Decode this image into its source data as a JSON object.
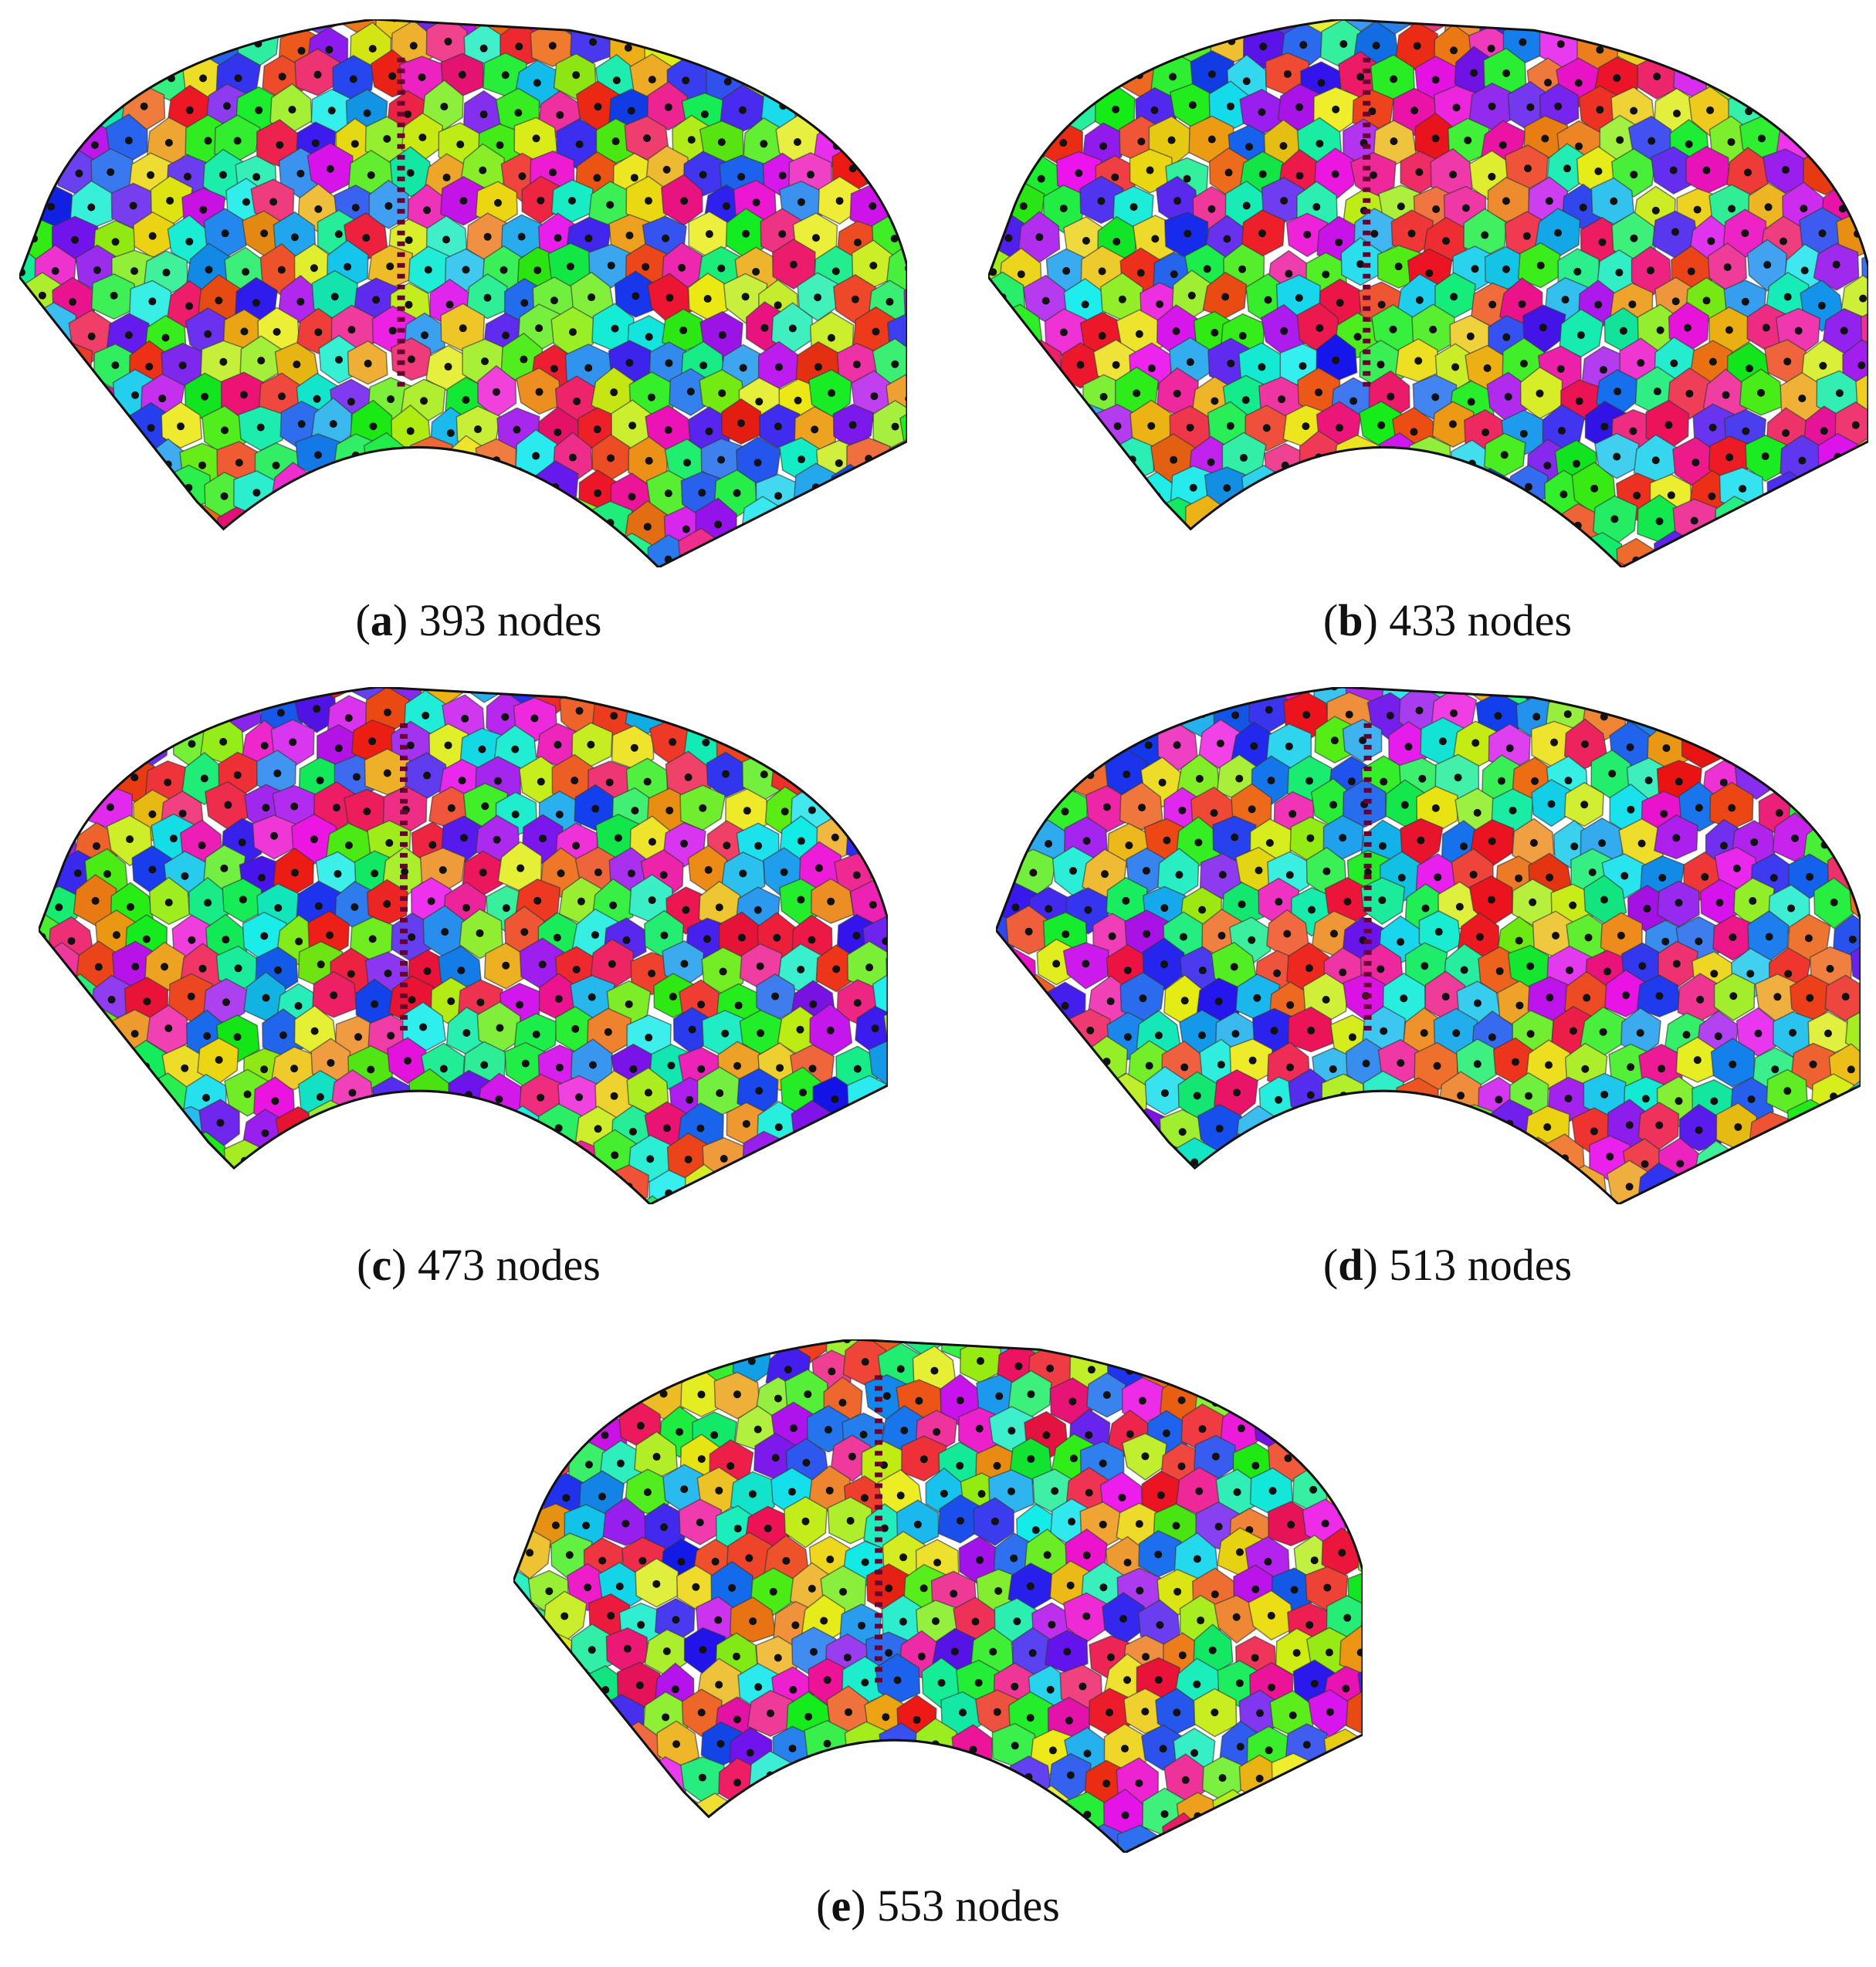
{
  "panels": [
    {
      "caption_parts": [
        "(",
        "a",
        ") 393 nodes"
      ]
    },
    {
      "caption_parts": [
        "(",
        "b",
        ") 433 nodes"
      ]
    },
    {
      "caption_parts": [
        "(",
        "c",
        ") 473 nodes"
      ]
    },
    {
      "caption_parts": [
        "(",
        "d",
        ") 513 nodes"
      ]
    },
    {
      "caption_parts": [
        "(",
        "e",
        ") 553 nodes"
      ]
    }
  ]
}
